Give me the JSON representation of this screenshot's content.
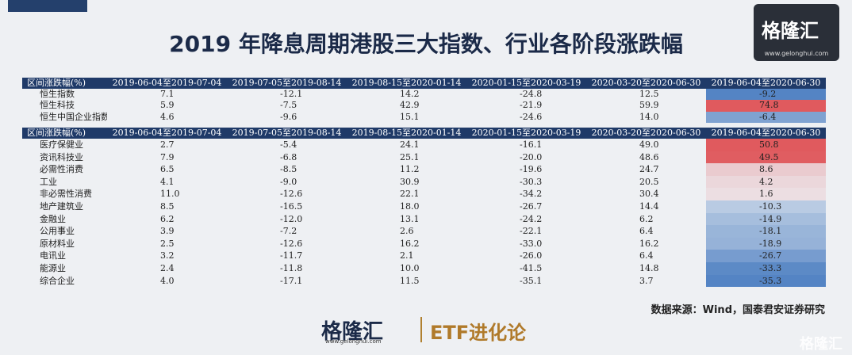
{
  "header": {
    "title": "2019 年降息周期港股三大指数、行业各阶段涨跌幅",
    "logo": "格隆汇",
    "url": "www.gelonghui.com"
  },
  "table1": {
    "columns": [
      "区间涨跌幅(%)",
      "2019-06-04至2019-07-04",
      "2019-07-05至2019-08-14",
      "2019-08-15至2020-01-14",
      "2020-01-15至2020-03-19",
      "2020-03-20至2020-06-30",
      "2019-06-04至2020-06-30"
    ],
    "rows": [
      [
        "恒生指数",
        "7.1",
        "-12.1",
        "14.2",
        "-24.8",
        "12.5",
        "-9.2"
      ],
      [
        "恒生科技",
        "5.9",
        "-7.5",
        "42.9",
        "-21.9",
        "59.9",
        "74.8"
      ],
      [
        "恒生中国企业指数",
        "4.6",
        "-9.6",
        "15.1",
        "-24.6",
        "14.0",
        "-6.4"
      ]
    ]
  },
  "table2": {
    "columns": [
      "区间涨跌幅(%)",
      "2019-06-04至2019-07-04",
      "2019-07-05至2019-08-14",
      "2019-08-15至2020-01-14",
      "2020-01-15至2020-03-19",
      "2020-03-20至2020-06-30",
      "2019-06-04至2020-06-30"
    ],
    "rows": [
      [
        "医疗保健业",
        "2.7",
        "-5.4",
        "24.1",
        "-16.1",
        "49.0",
        "50.8"
      ],
      [
        "资讯科技业",
        "7.9",
        "-6.8",
        "25.1",
        "-20.0",
        "48.6",
        "49.5"
      ],
      [
        "必需性消费",
        "6.5",
        "-8.5",
        "11.2",
        "-19.6",
        "24.7",
        "8.6"
      ],
      [
        "工业",
        "4.1",
        "-9.0",
        "30.9",
        "-30.3",
        "20.5",
        "4.2"
      ],
      [
        "非必需性消费",
        "11.0",
        "-12.6",
        "22.1",
        "-34.2",
        "30.4",
        "1.6"
      ],
      [
        "地产建筑业",
        "8.5",
        "-16.5",
        "18.0",
        "-26.7",
        "14.4",
        "-10.3"
      ],
      [
        "金融业",
        "6.2",
        "-12.0",
        "13.1",
        "-24.2",
        "6.2",
        "-14.9"
      ],
      [
        "公用事业",
        "3.9",
        "-7.2",
        "2.6",
        "-22.1",
        "6.4",
        "-18.1"
      ],
      [
        "原材料业",
        "2.5",
        "-12.6",
        "16.2",
        "-33.0",
        "16.2",
        "-18.9"
      ],
      [
        "电讯业",
        "3.2",
        "-11.7",
        "2.1",
        "-26.0",
        "6.4",
        "-26.7"
      ],
      [
        "能源业",
        "2.4",
        "-11.8",
        "10.0",
        "-41.5",
        "14.8",
        "-33.3"
      ],
      [
        "综合企业",
        "4.0",
        "-17.1",
        "11.5",
        "-35.1",
        "3.7",
        "-35.3"
      ]
    ]
  },
  "source": "数据来源：Wind，国泰君安证券研究",
  "footer": {
    "logo": "格隆汇",
    "url": "www.gelonghui.com",
    "column": "ETF进化论"
  },
  "watermark": "格隆汇"
}
